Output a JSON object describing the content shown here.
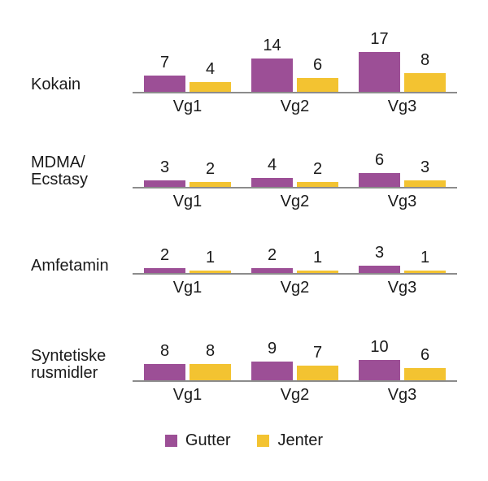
{
  "chart_data": {
    "type": "bar",
    "categories": [
      "Vg1",
      "Vg2",
      "Vg3"
    ],
    "legend": [
      {
        "name": "Gutter",
        "color": "#9c4f96"
      },
      {
        "name": "Jenter",
        "color": "#f3c331"
      }
    ],
    "legend_position": "bottom-center",
    "axis_color": "#8c8c8c",
    "grid": false,
    "rows": [
      {
        "label": "Kokain",
        "series": [
          {
            "name": "Gutter",
            "values": [
              7,
              14,
              17
            ]
          },
          {
            "name": "Jenter",
            "values": [
              4,
              6,
              8
            ]
          }
        ]
      },
      {
        "label": "MDMA/\nEcstasy",
        "series": [
          {
            "name": "Gutter",
            "values": [
              3,
              4,
              6
            ]
          },
          {
            "name": "Jenter",
            "values": [
              2,
              2,
              3
            ]
          }
        ]
      },
      {
        "label": "Amfetamin",
        "series": [
          {
            "name": "Gutter",
            "values": [
              2,
              2,
              3
            ]
          },
          {
            "name": "Jenter",
            "values": [
              1,
              1,
              1
            ]
          }
        ]
      },
      {
        "label": "Syntetiske\nrusmidler",
        "series": [
          {
            "name": "Gutter",
            "values": [
              8,
              9,
              10
            ]
          },
          {
            "name": "Jenter",
            "values": [
              8,
              7,
              6
            ]
          }
        ]
      }
    ]
  }
}
